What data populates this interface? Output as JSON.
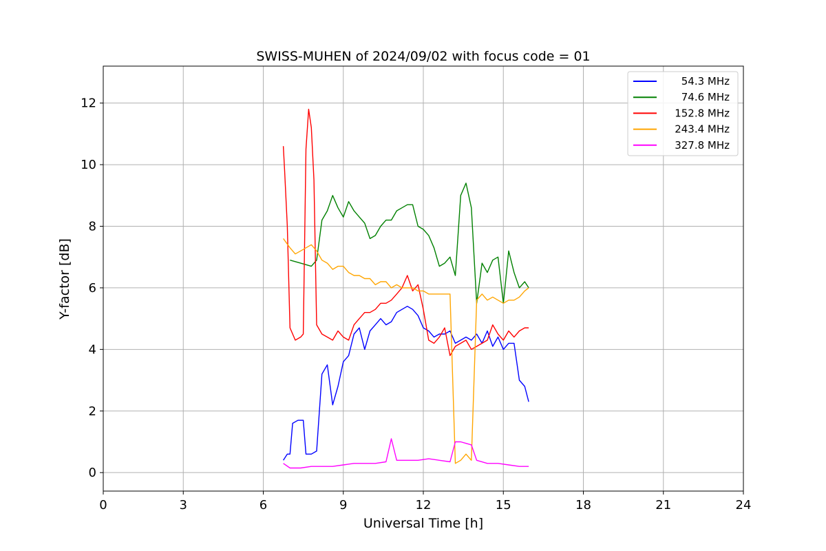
{
  "chart_data": {
    "type": "line",
    "title": "SWISS-MUHEN of 2024/09/02 with focus code = 01",
    "xlabel": "Universal Time [h]",
    "ylabel": "Y-factor [dB]",
    "xlim": [
      0,
      24
    ],
    "ylim": [
      -0.6,
      13.2
    ],
    "xticks": [
      0,
      3,
      6,
      9,
      12,
      15,
      18,
      21,
      24
    ],
    "yticks": [
      0,
      2,
      4,
      6,
      8,
      10,
      12
    ],
    "grid": true,
    "legend_position": "top-right",
    "series": [
      {
        "name": "54.3 MHz",
        "color": "#0000ff",
        "x": [
          6.75,
          6.9,
          7.0,
          7.1,
          7.3,
          7.5,
          7.6,
          7.8,
          8.0,
          8.2,
          8.4,
          8.6,
          8.8,
          9.0,
          9.2,
          9.4,
          9.6,
          9.8,
          10.0,
          10.2,
          10.4,
          10.6,
          10.8,
          11.0,
          11.2,
          11.4,
          11.6,
          11.8,
          12.0,
          12.2,
          12.4,
          12.6,
          12.8,
          13.0,
          13.2,
          13.4,
          13.6,
          13.8,
          14.0,
          14.2,
          14.4,
          14.6,
          14.8,
          15.0,
          15.2,
          15.4,
          15.6,
          15.8,
          15.95
        ],
        "y": [
          0.4,
          0.6,
          0.6,
          1.6,
          1.7,
          1.7,
          0.6,
          0.6,
          0.7,
          3.2,
          3.5,
          2.2,
          2.8,
          3.6,
          3.8,
          4.5,
          4.7,
          4.0,
          4.6,
          4.8,
          5.0,
          4.8,
          4.9,
          5.2,
          5.3,
          5.4,
          5.3,
          5.1,
          4.7,
          4.6,
          4.4,
          4.5,
          4.5,
          4.6,
          4.2,
          4.3,
          4.4,
          4.3,
          4.5,
          4.2,
          4.6,
          4.1,
          4.4,
          4.0,
          4.2,
          4.2,
          3.0,
          2.8,
          2.3
        ]
      },
      {
        "name": "74.6 MHz",
        "color": "#008000",
        "x": [
          7.0,
          7.4,
          7.8,
          8.0,
          8.2,
          8.4,
          8.6,
          8.8,
          9.0,
          9.2,
          9.4,
          9.6,
          9.8,
          10.0,
          10.2,
          10.4,
          10.6,
          10.8,
          11.0,
          11.2,
          11.4,
          11.6,
          11.8,
          12.0,
          12.2,
          12.4,
          12.6,
          12.8,
          13.0,
          13.2,
          13.4,
          13.6,
          13.8,
          14.0,
          14.2,
          14.4,
          14.6,
          14.8,
          15.0,
          15.2,
          15.4,
          15.6,
          15.8,
          15.95
        ],
        "y": [
          6.9,
          6.8,
          6.7,
          6.9,
          8.2,
          8.5,
          9.0,
          8.6,
          8.3,
          8.8,
          8.5,
          8.3,
          8.1,
          7.6,
          7.7,
          8.0,
          8.2,
          8.2,
          8.5,
          8.6,
          8.7,
          8.7,
          8.0,
          7.9,
          7.7,
          7.3,
          6.7,
          6.8,
          7.0,
          6.4,
          9.0,
          9.4,
          8.6,
          5.5,
          6.8,
          6.5,
          6.9,
          7.0,
          5.5,
          7.2,
          6.5,
          6.0,
          6.2,
          6.0
        ]
      },
      {
        "name": "152.8 MHz",
        "color": "#ff0000",
        "x": [
          6.75,
          6.8,
          6.9,
          7.0,
          7.2,
          7.4,
          7.5,
          7.6,
          7.7,
          7.8,
          7.9,
          8.0,
          8.2,
          8.4,
          8.6,
          8.8,
          9.0,
          9.2,
          9.4,
          9.6,
          9.8,
          10.0,
          10.2,
          10.4,
          10.6,
          10.8,
          11.0,
          11.2,
          11.4,
          11.6,
          11.8,
          12.0,
          12.2,
          12.4,
          12.6,
          12.8,
          13.0,
          13.2,
          13.4,
          13.6,
          13.8,
          14.0,
          14.2,
          14.4,
          14.6,
          14.8,
          15.0,
          15.2,
          15.4,
          15.6,
          15.8,
          15.95
        ],
        "y": [
          10.6,
          9.8,
          8.0,
          4.7,
          4.3,
          4.4,
          4.5,
          10.5,
          11.8,
          11.2,
          9.5,
          4.8,
          4.5,
          4.4,
          4.3,
          4.6,
          4.4,
          4.3,
          4.8,
          5.0,
          5.2,
          5.2,
          5.3,
          5.5,
          5.5,
          5.6,
          5.8,
          6.0,
          6.4,
          5.9,
          6.1,
          5.3,
          4.3,
          4.2,
          4.4,
          4.7,
          3.8,
          4.1,
          4.2,
          4.3,
          4.0,
          4.1,
          4.2,
          4.3,
          4.8,
          4.5,
          4.3,
          4.6,
          4.4,
          4.6,
          4.7,
          4.7
        ]
      },
      {
        "name": "243.4 MHz",
        "color": "#ffa500",
        "x": [
          6.75,
          7.0,
          7.2,
          7.4,
          7.6,
          7.8,
          8.0,
          8.2,
          8.4,
          8.6,
          8.8,
          9.0,
          9.2,
          9.4,
          9.6,
          9.8,
          10.0,
          10.2,
          10.4,
          10.6,
          10.8,
          11.0,
          11.2,
          11.4,
          11.6,
          11.8,
          12.0,
          12.2,
          12.4,
          12.6,
          12.8,
          13.0,
          13.2,
          13.4,
          13.6,
          13.8,
          14.0,
          14.2,
          14.4,
          14.6,
          14.8,
          15.0,
          15.2,
          15.4,
          15.6,
          15.8,
          15.95
        ],
        "y": [
          7.6,
          7.3,
          7.1,
          7.2,
          7.3,
          7.4,
          7.2,
          6.9,
          6.8,
          6.6,
          6.7,
          6.7,
          6.5,
          6.4,
          6.4,
          6.3,
          6.3,
          6.1,
          6.2,
          6.2,
          6.0,
          6.1,
          6.0,
          6.0,
          6.0,
          5.9,
          5.9,
          5.8,
          5.8,
          5.8,
          5.8,
          5.8,
          0.3,
          0.4,
          0.6,
          0.4,
          5.6,
          5.8,
          5.6,
          5.7,
          5.6,
          5.5,
          5.6,
          5.6,
          5.7,
          5.9,
          6.0
        ]
      },
      {
        "name": "327.8 MHz",
        "color": "#ff00ff",
        "x": [
          6.75,
          7.0,
          7.4,
          7.8,
          8.2,
          8.6,
          9.0,
          9.4,
          9.8,
          10.2,
          10.6,
          10.8,
          11.0,
          11.4,
          11.8,
          12.2,
          12.6,
          13.0,
          13.2,
          13.4,
          13.6,
          13.8,
          14.0,
          14.4,
          14.8,
          15.2,
          15.6,
          15.95
        ],
        "y": [
          0.3,
          0.15,
          0.15,
          0.2,
          0.2,
          0.2,
          0.25,
          0.3,
          0.3,
          0.3,
          0.35,
          1.1,
          0.4,
          0.4,
          0.4,
          0.45,
          0.4,
          0.35,
          1.0,
          1.0,
          0.95,
          0.9,
          0.4,
          0.3,
          0.3,
          0.25,
          0.2,
          0.2
        ]
      }
    ]
  }
}
